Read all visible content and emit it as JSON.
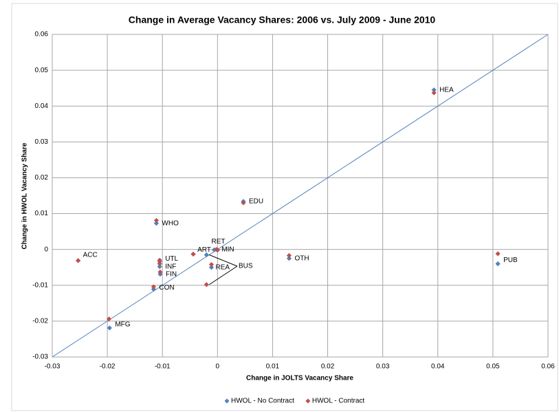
{
  "chart_data": {
    "type": "scatter",
    "title": "Change in Average Vacancy Shares: 2006 vs. July 2009 - June 2010",
    "x_label": "Change in JOLTS Vacancy Share",
    "y_label": "Change in HWOL Vacancy Share",
    "categories": [
      "HEA",
      "PUB",
      "EDU",
      "OTH",
      "WHO",
      "ACC",
      "UTL",
      "INF",
      "FIN",
      "CON",
      "MFG",
      "ART",
      "RET",
      "MIN",
      "BUS",
      "REA"
    ],
    "series": [
      {
        "name": "HWOL - No Contract",
        "color": "#4f81bd",
        "x": [
          0.0393,
          0.0509,
          0.0047,
          0.013,
          -0.0111,
          -0.0253,
          -0.0105,
          -0.0105,
          -0.0104,
          -0.0116,
          -0.0196,
          -0.0044,
          -0.0006,
          0,
          -0.002,
          -0.0011
        ],
        "values": [
          0.0445,
          -0.004,
          0.0134,
          -0.0025,
          0.0073,
          -0.0031,
          -0.0034,
          -0.0048,
          -0.0069,
          -0.0111,
          -0.0219,
          -0.0013,
          -0.0001,
          -0.0002,
          -0.0015,
          -0.005
        ]
      },
      {
        "name": "HWOL - Contract",
        "color": "#c0504d",
        "x": [
          0.0393,
          0.0509,
          0.0047,
          0.013,
          -0.0111,
          -0.0253,
          -0.0105,
          -0.0105,
          -0.0104,
          -0.0116,
          -0.0197,
          -0.0044,
          -0.0002,
          0,
          -0.002,
          -0.0011
        ],
        "values": [
          0.0437,
          -0.0012,
          0.013,
          -0.0017,
          0.0081,
          -0.0031,
          -0.003,
          -0.004,
          -0.0063,
          -0.0104,
          -0.0194,
          -0.0013,
          0,
          -0.0001,
          -0.0098,
          -0.0042
        ]
      }
    ],
    "xlim": [
      -0.03,
      0.06
    ],
    "ylim": [
      -0.03,
      0.06
    ],
    "xticks": [
      -0.03,
      -0.02,
      -0.01,
      0,
      0.01,
      0.02,
      0.03,
      0.04,
      0.05,
      0.06
    ],
    "yticks": [
      -0.03,
      -0.02,
      -0.01,
      0,
      0.01,
      0.02,
      0.03,
      0.04,
      0.05,
      0.06
    ],
    "grid": true,
    "legend": "bottom",
    "reference_line": "y=x",
    "reference_color": "#4f81bd"
  }
}
